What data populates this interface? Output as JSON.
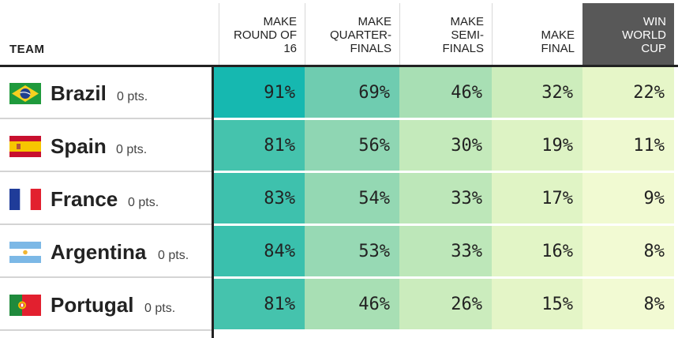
{
  "header": {
    "team_label": "TEAM",
    "columns": [
      {
        "label": "MAKE\nROUND OF\n16"
      },
      {
        "label": "MAKE\nQUARTER-\nFINALS"
      },
      {
        "label": "MAKE\nSEMI-\nFINALS"
      },
      {
        "label": "MAKE\nFINAL"
      },
      {
        "label": "WIN\nWORLD\nCUP"
      }
    ]
  },
  "rows": [
    {
      "country": "Brazil",
      "pts": "0 pts.",
      "flag": "brazil-flag-icon",
      "values": [
        "91%",
        "69%",
        "46%",
        "32%",
        "22%"
      ],
      "colors": [
        "#16b8b0",
        "#6fccb0",
        "#a8dfb4",
        "#cdedbc",
        "#e6f6c8"
      ]
    },
    {
      "country": "Spain",
      "pts": "0 pts.",
      "flag": "spain-flag-icon",
      "values": [
        "81%",
        "56%",
        "30%",
        "19%",
        "11%"
      ],
      "colors": [
        "#45c3ad",
        "#8fd6b3",
        "#c4eabb",
        "#ddf3c4",
        "#eef9d0"
      ]
    },
    {
      "country": "France",
      "pts": "0 pts.",
      "flag": "france-flag-icon",
      "values": [
        "83%",
        "54%",
        "33%",
        "17%",
        "9%"
      ],
      "colors": [
        "#3ec1ad",
        "#94d8b3",
        "#bde7b9",
        "#e0f4c5",
        "#f1fad2"
      ]
    },
    {
      "country": "Argentina",
      "pts": "0 pts.",
      "flag": "argentina-flag-icon",
      "values": [
        "84%",
        "53%",
        "33%",
        "16%",
        "8%"
      ],
      "colors": [
        "#3ac0ad",
        "#97d9b4",
        "#bde7b9",
        "#e2f5c6",
        "#f2fad3"
      ]
    },
    {
      "country": "Portugal",
      "pts": "0 pts.",
      "flag": "portugal-flag-icon",
      "values": [
        "81%",
        "46%",
        "26%",
        "15%",
        "8%"
      ],
      "colors": [
        "#45c3ad",
        "#a8dfb4",
        "#cbecbd",
        "#e4f5c7",
        "#f2fad3"
      ]
    }
  ]
}
